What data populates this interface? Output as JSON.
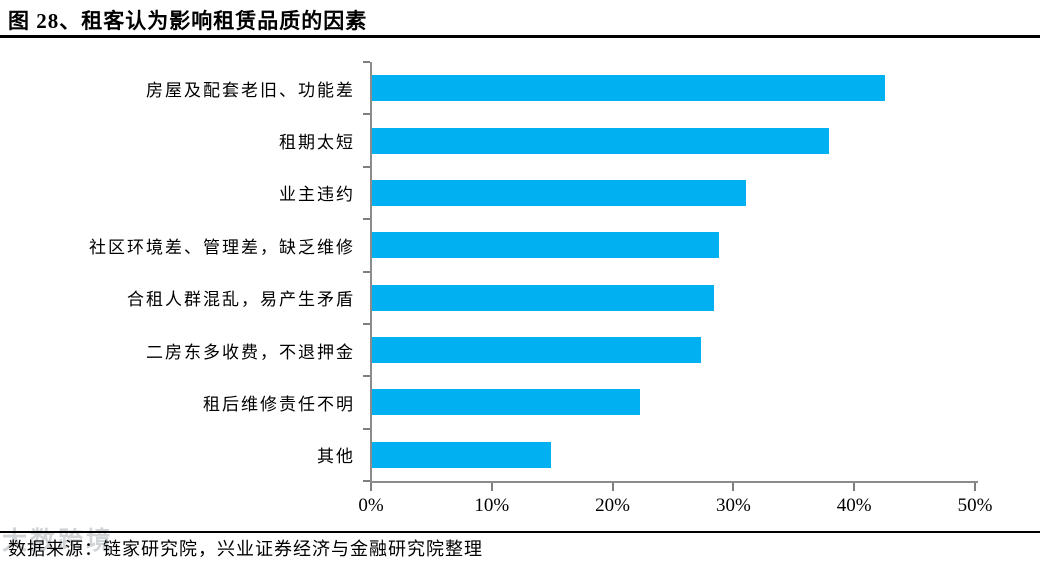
{
  "title": "图 28、租客认为影响租赁品质的因素",
  "chart_data": {
    "type": "bar",
    "orientation": "horizontal",
    "title": "租客认为影响租赁品质的因素",
    "categories": [
      "房屋及配套老旧、功能差",
      "租期太短",
      "业主违约",
      "社区环境差、管理差，缺乏维修",
      "合租人群混乱，易产生矛盾",
      "二房东多收费，不退押金",
      "租后维修责任不明",
      "其他"
    ],
    "values": [
      42.5,
      37.8,
      31.0,
      28.7,
      28.3,
      27.2,
      22.2,
      14.8
    ],
    "xlim": [
      0,
      50
    ],
    "x_tick_values": [
      0,
      10,
      20,
      30,
      40,
      50
    ],
    "x_tick_labels": [
      "0%",
      "10%",
      "20%",
      "30%",
      "40%",
      "50%"
    ],
    "grid": false,
    "legend": "none",
    "bar_color": "#00B0F0",
    "axis_color": "#8C8C8C",
    "tick_color": "#7F7F7F"
  },
  "footer": {
    "source": "数据来源：链家研究院，兴业证券经济与金融研究院整理"
  },
  "watermark": "大数跨境"
}
